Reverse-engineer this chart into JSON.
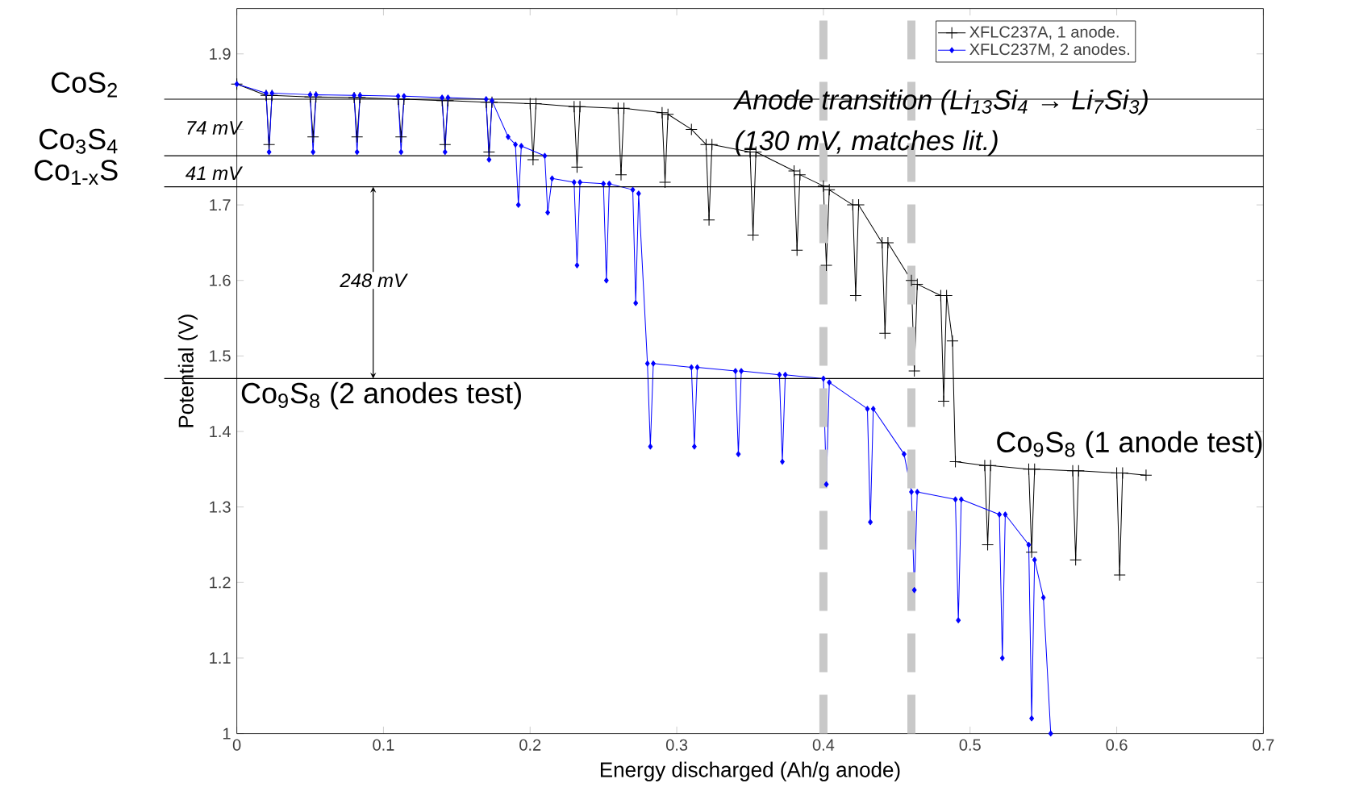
{
  "chart_data": {
    "type": "line",
    "xlabel": "Energy discharged (Ah/g anode)",
    "ylabel": "Potential (V)",
    "xlim": [
      0,
      0.7
    ],
    "ylim": [
      1,
      1.96
    ],
    "xticks": [
      0,
      0.1,
      0.2,
      0.3,
      0.4,
      0.5,
      0.6,
      0.7
    ],
    "yticks": [
      1,
      1.1,
      1.2,
      1.3,
      1.4,
      1.5,
      1.6,
      1.7,
      {
        "value": 1.8,
        "label": null
      },
      1.9
    ],
    "legend": "top right",
    "series": [
      {
        "name": "XFLC237A, 1 anode.",
        "color": "#000000",
        "marker": "cross",
        "x": [
          0,
          0.02,
          0.022,
          0.024,
          0.05,
          0.052,
          0.054,
          0.08,
          0.082,
          0.084,
          0.11,
          0.112,
          0.114,
          0.14,
          0.142,
          0.144,
          0.17,
          0.172,
          0.174,
          0.2,
          0.202,
          0.204,
          0.23,
          0.232,
          0.234,
          0.26,
          0.262,
          0.264,
          0.29,
          0.292,
          0.294,
          0.31,
          0.32,
          0.322,
          0.324,
          0.35,
          0.352,
          0.354,
          0.38,
          0.382,
          0.384,
          0.4,
          0.402,
          0.404,
          0.42,
          0.422,
          0.424,
          0.44,
          0.442,
          0.444,
          0.46,
          0.462,
          0.464,
          0.48,
          0.482,
          0.484,
          0.488,
          0.49,
          0.51,
          0.512,
          0.514,
          0.54,
          0.542,
          0.544,
          0.57,
          0.572,
          0.574,
          0.6,
          0.602,
          0.604,
          0.62
        ],
        "values": [
          1.86,
          1.845,
          1.78,
          1.845,
          1.843,
          1.79,
          1.843,
          1.842,
          1.79,
          1.842,
          1.84,
          1.79,
          1.84,
          1.838,
          1.78,
          1.838,
          1.836,
          1.77,
          1.836,
          1.834,
          1.76,
          1.834,
          1.83,
          1.75,
          1.83,
          1.828,
          1.74,
          1.828,
          1.822,
          1.73,
          1.82,
          1.8,
          1.78,
          1.68,
          1.78,
          1.77,
          1.66,
          1.77,
          1.745,
          1.64,
          1.74,
          1.725,
          1.62,
          1.72,
          1.7,
          1.58,
          1.7,
          1.65,
          1.53,
          1.65,
          1.6,
          1.48,
          1.595,
          1.58,
          1.44,
          1.58,
          1.52,
          1.36,
          1.355,
          1.25,
          1.355,
          1.35,
          1.24,
          1.35,
          1.348,
          1.23,
          1.348,
          1.345,
          1.21,
          1.345,
          1.342
        ]
      },
      {
        "name": "XFLC237M, 2 anodes.",
        "color": "#0000ff",
        "marker": "diamond",
        "x": [
          0,
          0.02,
          0.022,
          0.024,
          0.05,
          0.052,
          0.054,
          0.08,
          0.082,
          0.084,
          0.11,
          0.112,
          0.114,
          0.14,
          0.142,
          0.144,
          0.17,
          0.172,
          0.174,
          0.185,
          0.19,
          0.192,
          0.194,
          0.21,
          0.212,
          0.215,
          0.23,
          0.232,
          0.234,
          0.25,
          0.252,
          0.254,
          0.27,
          0.272,
          0.274,
          0.28,
          0.282,
          0.284,
          0.31,
          0.312,
          0.314,
          0.34,
          0.342,
          0.344,
          0.37,
          0.372,
          0.374,
          0.4,
          0.402,
          0.404,
          0.43,
          0.432,
          0.434,
          0.455,
          0.46,
          0.462,
          0.464,
          0.49,
          0.492,
          0.494,
          0.52,
          0.522,
          0.524,
          0.54,
          0.542,
          0.544,
          0.55,
          0.555
        ],
        "values": [
          1.86,
          1.848,
          1.77,
          1.848,
          1.846,
          1.77,
          1.846,
          1.845,
          1.77,
          1.845,
          1.844,
          1.77,
          1.844,
          1.842,
          1.77,
          1.842,
          1.84,
          1.76,
          1.838,
          1.79,
          1.78,
          1.7,
          1.778,
          1.765,
          1.69,
          1.735,
          1.73,
          1.62,
          1.73,
          1.728,
          1.6,
          1.728,
          1.72,
          1.57,
          1.715,
          1.49,
          1.38,
          1.49,
          1.485,
          1.38,
          1.485,
          1.48,
          1.37,
          1.48,
          1.475,
          1.36,
          1.475,
          1.47,
          1.33,
          1.465,
          1.43,
          1.28,
          1.43,
          1.37,
          1.32,
          1.19,
          1.32,
          1.31,
          1.15,
          1.31,
          1.29,
          1.1,
          1.29,
          1.25,
          1.02,
          1.23,
          1.18,
          1.0
        ]
      }
    ],
    "ref_lines": [
      {
        "axis": "y",
        "value": 1.84,
        "label": "CoS$_{2}$",
        "color": "#000000"
      },
      {
        "axis": "y",
        "value": 1.765,
        "label": "Co$_{3}$S$_{4}$",
        "color": "#000000"
      },
      {
        "axis": "y",
        "value": 1.724,
        "label": "Co$_{1-x}$S",
        "color": "#000000"
      },
      {
        "axis": "y",
        "value": 1.47,
        "color": "#000000"
      },
      {
        "axis": "x",
        "value": 0.4,
        "color": "#c8c8c8",
        "line_style": "dashed"
      },
      {
        "axis": "x",
        "value": 0.46,
        "color": "#c8c8c8",
        "line_style": "dashed"
      }
    ],
    "annotations": [
      "74 mV",
      "41 mV",
      "248 mV",
      {
        "text": "Co$_{9}$S$_{8}$ (2 anodes test)",
        "x": 0.0,
        "y": 1.47
      },
      {
        "text": "Co$_{9}$S$_{8}$ (1 anode test)",
        "x": 0.515,
        "y": 1.36
      },
      "Anode transition (Li$_{13}$Si$_{4}$ → Li$_{7}$Si$_{3}$)",
      "(130 mV, matches lit.)"
    ]
  }
}
